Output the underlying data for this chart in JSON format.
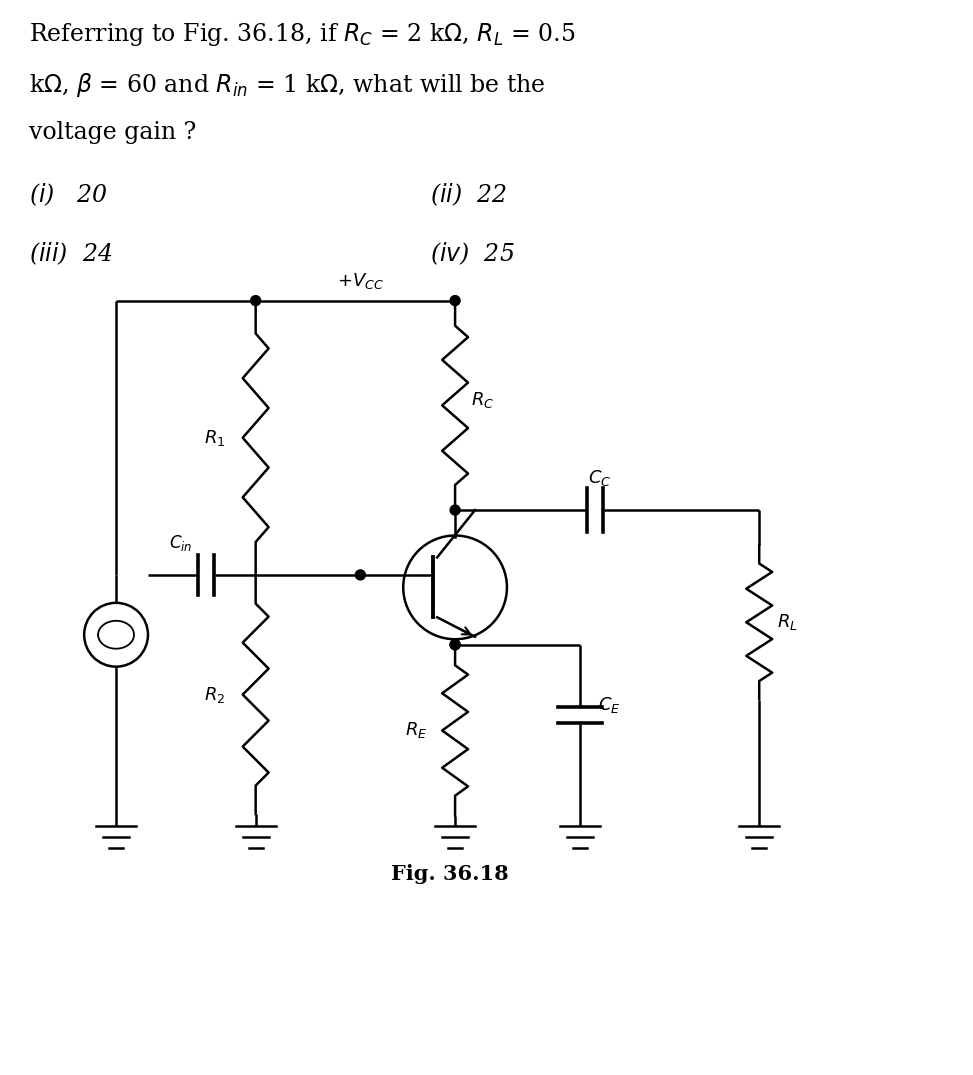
{
  "fig_label": "Fig. 36.18",
  "bg_color": "#ffffff",
  "fg_color": "#000000",
  "text_fontsize": 17,
  "option_fontsize": 17
}
